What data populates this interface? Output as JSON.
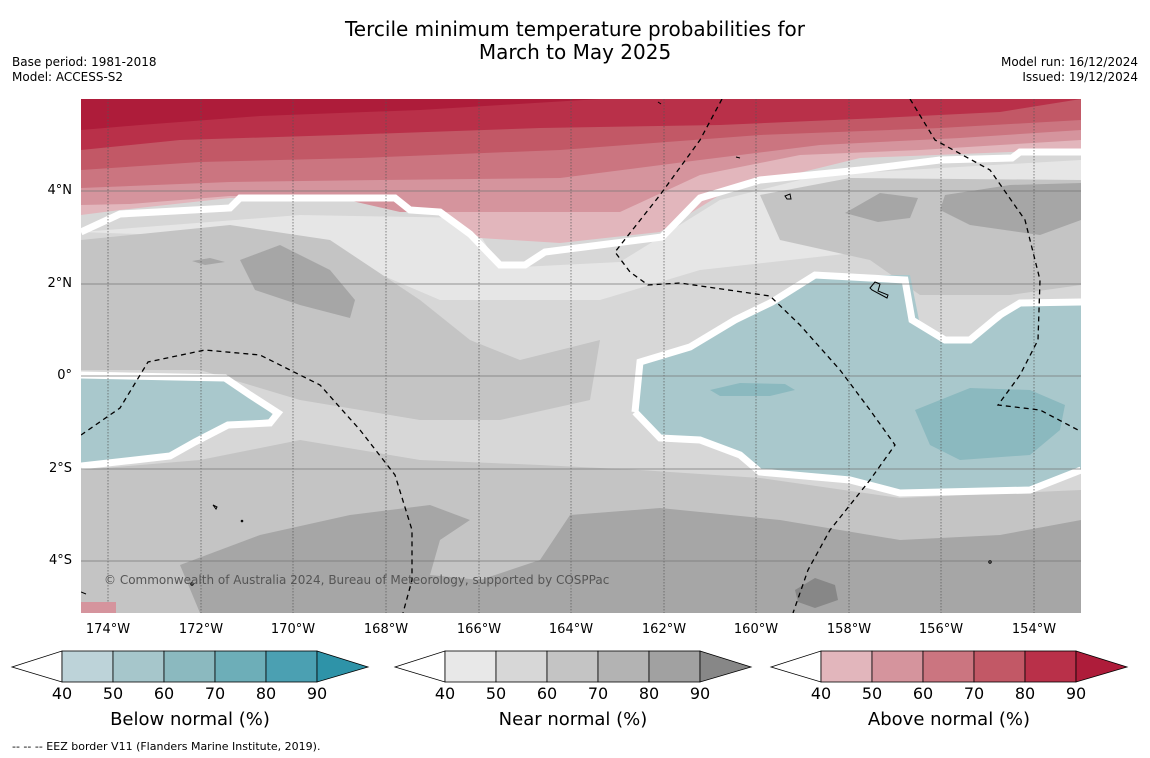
{
  "title_line1": "Tercile minimum temperature probabilities for",
  "title_line2": "March to May 2025",
  "base_period": "Base period: 1981-2018",
  "model": "Model: ACCESS-S2",
  "model_run": "Model run: 16/12/2024",
  "issued": "Issued: 19/12/2024",
  "copyright": "© Commonwealth of Australia 2024, Bureau of Meteorology, supported by COSPPac",
  "footnote": "--  --  -- EEZ border V11 (Flanders Marine Institute, 2019).",
  "x_ticks": [
    "174°W",
    "172°W",
    "170°W",
    "168°W",
    "166°W",
    "164°W",
    "162°W",
    "160°W",
    "158°W",
    "156°W",
    "154°W"
  ],
  "y_ticks": [
    "4°N",
    "2°N",
    "0°",
    "2°S",
    "4°S"
  ],
  "colorbars": [
    {
      "label": "Below normal (%)",
      "ticks": [
        "40",
        "50",
        "60",
        "70",
        "80",
        "90"
      ],
      "colors": [
        "#bdd3d9",
        "#a6c6cb",
        "#8bb9bf",
        "#6daeb8",
        "#4ba0b2",
        "#2e93a8"
      ]
    },
    {
      "label": "Near normal (%)",
      "ticks": [
        "40",
        "50",
        "60",
        "70",
        "80",
        "90"
      ],
      "colors": [
        "#e8e8e8",
        "#d7d7d7",
        "#c4c4c4",
        "#b3b3b3",
        "#a1a1a1",
        "#878787"
      ]
    },
    {
      "label": "Above normal (%)",
      "ticks": [
        "40",
        "50",
        "60",
        "70",
        "80",
        "90"
      ],
      "colors": [
        "#e2b6bc",
        "#d5949d",
        "#cb7580",
        "#c25866",
        "#b93049",
        "#ae1c3a"
      ]
    }
  ]
}
